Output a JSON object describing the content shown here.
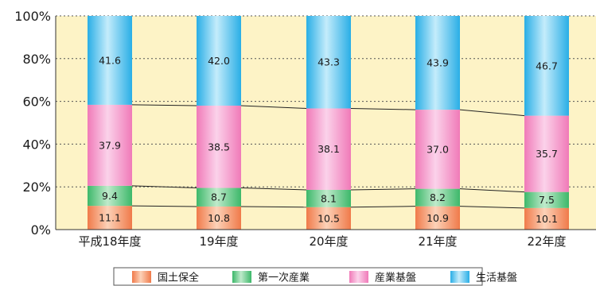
{
  "chart_data": {
    "type": "bar",
    "stacked": true,
    "percent": true,
    "categories": [
      "平成18年度",
      "19年度",
      "20年度",
      "21年度",
      "22年度"
    ],
    "series": [
      {
        "name": "国土保全",
        "values": [
          11.1,
          10.8,
          10.5,
          10.9,
          10.1
        ],
        "color": "#f07a4a"
      },
      {
        "name": "第一次産業",
        "values": [
          9.4,
          8.7,
          8.1,
          8.2,
          7.5
        ],
        "color": "#3db86a"
      },
      {
        "name": "産業基盤",
        "values": [
          37.9,
          38.5,
          38.1,
          37.0,
          35.7
        ],
        "color": "#f07ab8"
      },
      {
        "name": "生活基盤",
        "values": [
          41.6,
          42.0,
          43.3,
          43.9,
          46.7
        ],
        "color": "#29aee6"
      }
    ],
    "ylim": [
      0,
      100
    ],
    "yticks": [
      "0%",
      "20%",
      "40%",
      "60%",
      "80%",
      "100%"
    ],
    "plot_background": "#fdf3c6",
    "grid": "dotted",
    "legend_position": "bottom",
    "connector_lines": true
  }
}
